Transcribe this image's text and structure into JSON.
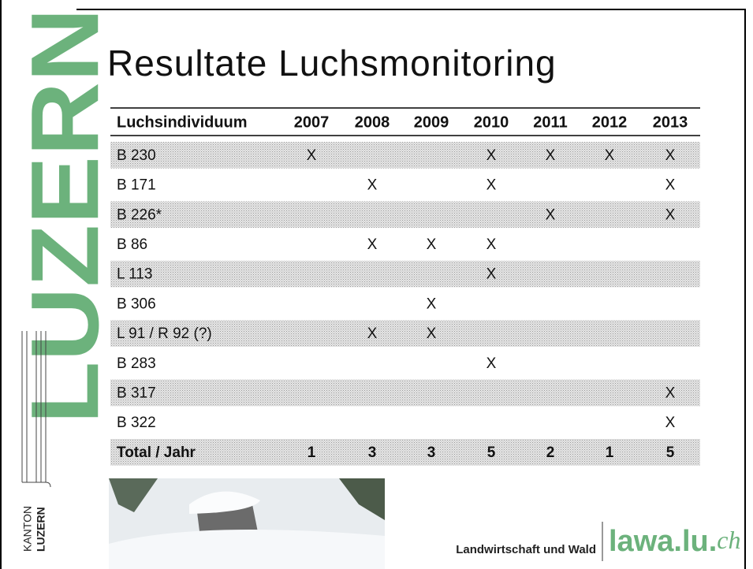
{
  "sidebar": {
    "brand": "LUZERN",
    "logo_top": "KANTON",
    "logo_bottom": "LUZERN"
  },
  "title": "Resultate Luchsmonitoring",
  "table": {
    "header": [
      "Luchsindividuum",
      "2007",
      "2008",
      "2009",
      "2010",
      "2011",
      "2012",
      "2013"
    ],
    "rows": [
      [
        "B 230",
        "X",
        null,
        null,
        "X",
        "X",
        "X",
        "X"
      ],
      [
        "B 171",
        null,
        "X",
        null,
        "X",
        null,
        null,
        "X"
      ],
      [
        "B 226*",
        null,
        null,
        null,
        null,
        "X",
        null,
        "X"
      ],
      [
        "B 86",
        null,
        "X",
        "X",
        "X",
        null,
        null,
        null
      ],
      [
        "L 113",
        null,
        null,
        null,
        "X",
        null,
        null,
        null
      ],
      [
        "B 306",
        null,
        null,
        "X",
        null,
        null,
        null,
        null
      ],
      [
        "L 91 / R 92 (?)",
        null,
        "X",
        "X",
        null,
        null,
        null,
        null
      ],
      [
        "B 283",
        null,
        null,
        null,
        "X",
        null,
        null,
        null
      ],
      [
        "B 317",
        null,
        null,
        null,
        null,
        null,
        null,
        "X"
      ],
      [
        "B 322",
        null,
        null,
        null,
        null,
        null,
        null,
        "X"
      ]
    ],
    "total": [
      "Total / Jahr",
      1,
      3,
      3,
      5,
      2,
      1,
      5
    ]
  },
  "footer": {
    "department": "Landwirtschaft und Wald",
    "site": "lawa.lu.",
    "site_suffix": "ch"
  }
}
